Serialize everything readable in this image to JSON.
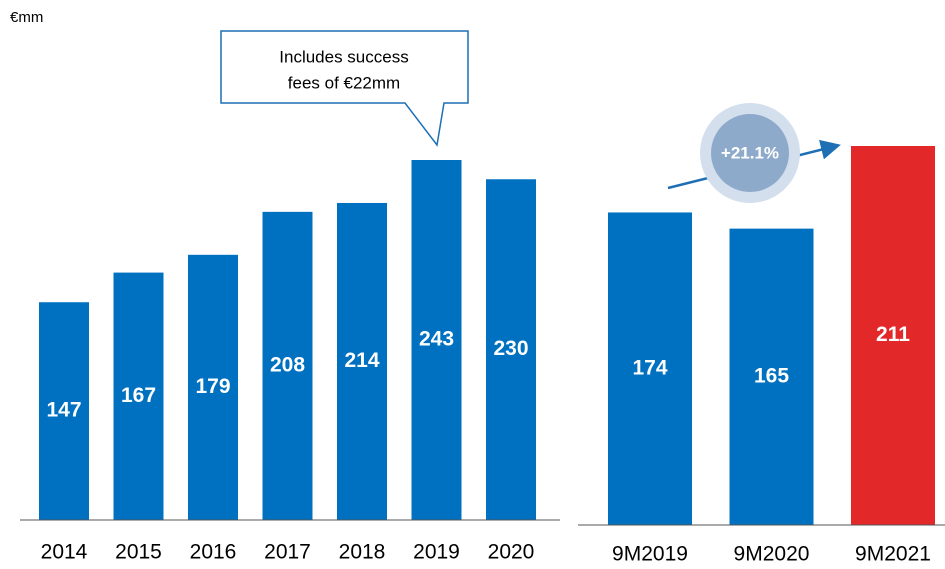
{
  "chart_data": [
    {
      "type": "bar",
      "y_label": "€mm",
      "categories": [
        "2014",
        "2015",
        "2016",
        "2017",
        "2018",
        "2019",
        "2020"
      ],
      "values": [
        147,
        167,
        179,
        208,
        214,
        243,
        230
      ],
      "color": "#0070c0",
      "annotation": {
        "lines": [
          "Includes success",
          "fees of €22mm"
        ],
        "category": "2019"
      }
    },
    {
      "type": "bar",
      "categories": [
        "9M2019",
        "9M2020",
        "9M2021"
      ],
      "values": [
        174,
        165,
        211
      ],
      "colors": [
        "#0070c0",
        "#0070c0",
        "#e3282a"
      ],
      "annotation": {
        "text": "+21.1%"
      }
    }
  ]
}
